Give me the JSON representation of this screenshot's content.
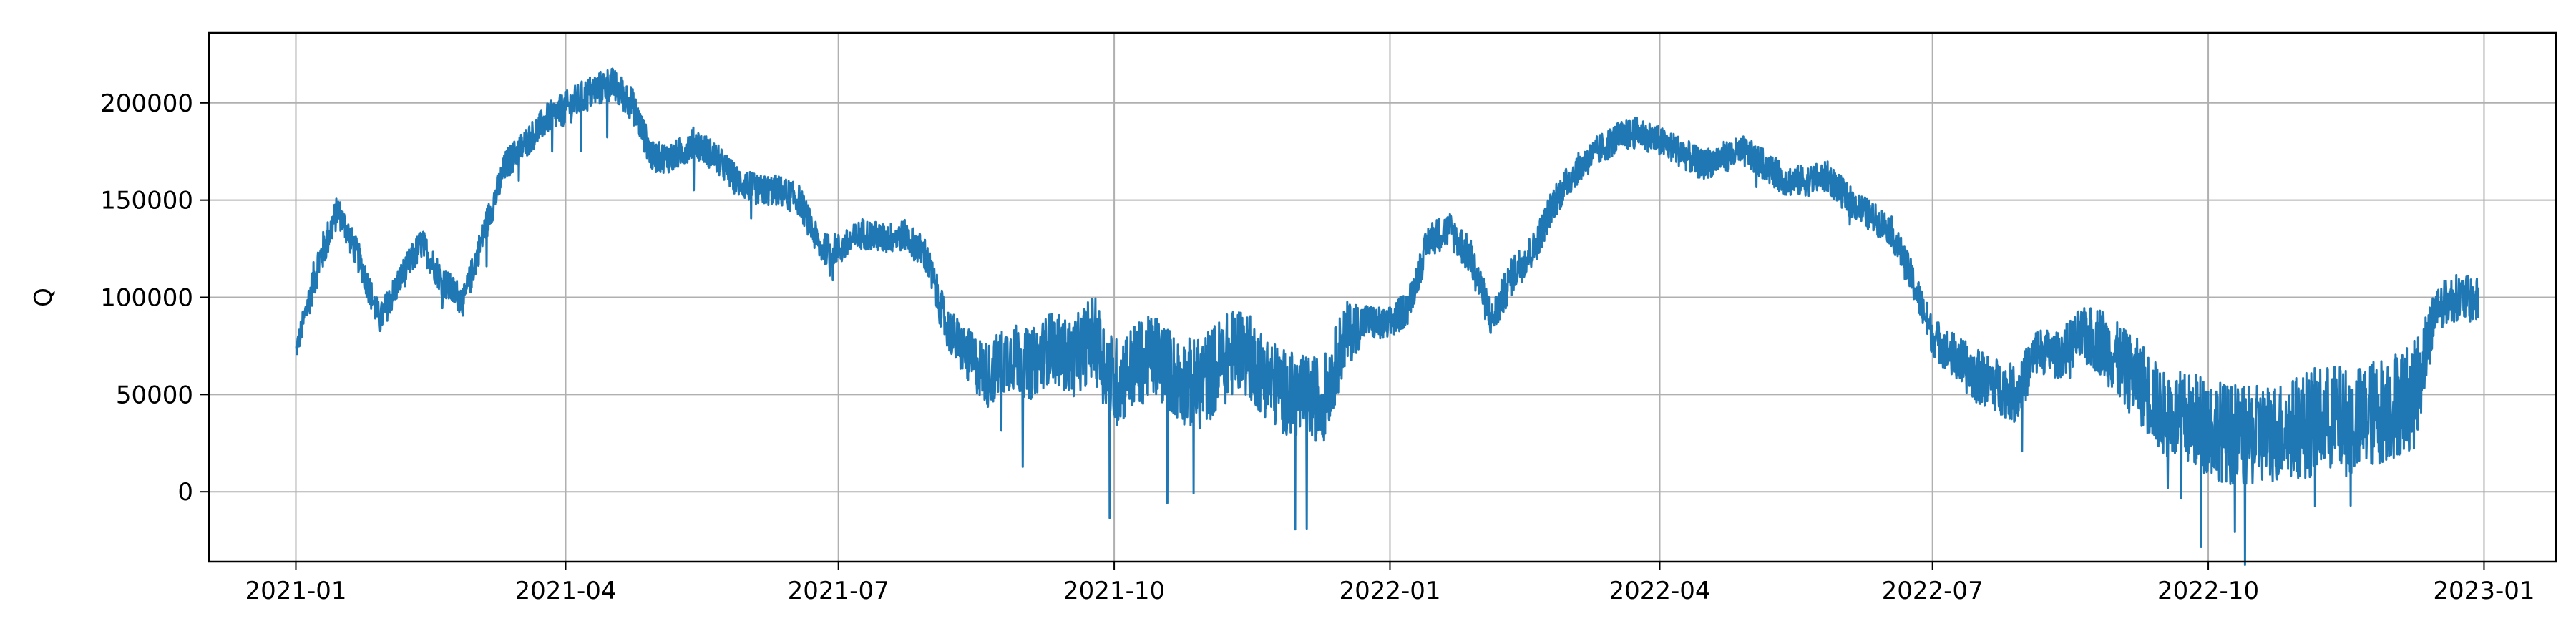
{
  "chart_data": {
    "type": "line",
    "title": "",
    "xlabel": "",
    "ylabel": "Q",
    "grid": true,
    "legend": "none",
    "xlim": [
      "2020-12-03",
      "2023-01-25"
    ],
    "ylim": [
      -36000,
      236000
    ],
    "x_ticks": [
      "2021-01",
      "2021-04",
      "2021-07",
      "2021-10",
      "2022-01",
      "2022-04",
      "2022-07",
      "2022-10",
      "2023-01"
    ],
    "y_ticks": [
      0,
      50000,
      100000,
      150000,
      200000
    ],
    "y_tick_labels": [
      "0",
      "50000",
      "100000",
      "150000",
      "200000"
    ],
    "series": [
      {
        "color": "#1f77b4",
        "x": [
          "2021-01-01",
          "2021-01-08",
          "2021-01-15",
          "2021-01-22",
          "2021-01-29",
          "2021-02-05",
          "2021-02-12",
          "2021-02-19",
          "2021-02-26",
          "2021-03-05",
          "2021-03-12",
          "2021-03-19",
          "2021-03-26",
          "2021-04-02",
          "2021-04-09",
          "2021-04-16",
          "2021-04-23",
          "2021-04-30",
          "2021-05-07",
          "2021-05-14",
          "2021-05-21",
          "2021-05-28",
          "2021-06-04",
          "2021-06-11",
          "2021-06-18",
          "2021-06-25",
          "2021-07-02",
          "2021-07-09",
          "2021-07-16",
          "2021-07-23",
          "2021-07-30",
          "2021-08-06",
          "2021-08-13",
          "2021-08-20",
          "2021-08-27",
          "2021-09-03",
          "2021-09-10",
          "2021-09-17",
          "2021-09-24",
          "2021-10-01",
          "2021-10-08",
          "2021-10-15",
          "2021-10-22",
          "2021-10-29",
          "2021-11-05",
          "2021-11-12",
          "2021-11-19",
          "2021-11-26",
          "2021-12-03",
          "2021-12-10",
          "2021-12-17",
          "2021-12-24",
          "2021-12-31",
          "2022-01-07",
          "2022-01-14",
          "2022-01-21",
          "2022-01-28",
          "2022-02-04",
          "2022-02-11",
          "2022-02-18",
          "2022-02-25",
          "2022-03-04",
          "2022-03-11",
          "2022-03-18",
          "2022-03-25",
          "2022-04-01",
          "2022-04-08",
          "2022-04-15",
          "2022-04-22",
          "2022-04-29",
          "2022-05-06",
          "2022-05-13",
          "2022-05-20",
          "2022-05-27",
          "2022-06-03",
          "2022-06-10",
          "2022-06-17",
          "2022-06-24",
          "2022-07-01",
          "2022-07-08",
          "2022-07-15",
          "2022-07-22",
          "2022-07-29",
          "2022-08-05",
          "2022-08-12",
          "2022-08-19",
          "2022-08-26",
          "2022-09-02",
          "2022-09-09",
          "2022-09-16",
          "2022-09-23",
          "2022-09-30",
          "2022-10-07",
          "2022-10-14",
          "2022-10-21",
          "2022-10-28",
          "2022-11-04",
          "2022-11-11",
          "2022-11-18",
          "2022-11-25",
          "2022-12-02",
          "2022-12-09",
          "2022-12-16",
          "2022-12-23",
          "2022-12-30"
        ],
        "y": [
          72000,
          115000,
          145000,
          120000,
          88000,
          110000,
          128000,
          108000,
          98000,
          135000,
          168000,
          180000,
          192000,
          198000,
          205000,
          210000,
          200000,
          172000,
          172000,
          180000,
          172000,
          160000,
          155000,
          155000,
          150000,
          125000,
          125000,
          133000,
          130000,
          132000,
          122000,
          85000,
          70000,
          60000,
          70000,
          65000,
          75000,
          68000,
          80000,
          55000,
          65000,
          70000,
          58000,
          55000,
          65000,
          75000,
          62000,
          52000,
          48000,
          48000,
          80000,
          88000,
          85000,
          95000,
          130000,
          135000,
          120000,
          88000,
          112000,
          125000,
          150000,
          165000,
          175000,
          182000,
          185000,
          180000,
          175000,
          168000,
          172000,
          175000,
          168000,
          160000,
          160000,
          162000,
          150000,
          142000,
          135000,
          110000,
          80000,
          70000,
          60000,
          55000,
          50000,
          73000,
          70000,
          80000,
          78000,
          65000,
          55000,
          40000,
          38000,
          35000,
          30000,
          28000,
          30000,
          32000,
          35000,
          38000,
          35000,
          40000,
          45000,
          50000,
          95000,
          100000,
          98000
        ],
        "spread": [
          5000,
          11000,
          8000,
          8000,
          8000,
          8000,
          8000,
          8000,
          8000,
          8000,
          8000,
          8000,
          8000,
          9000,
          9000,
          9000,
          9000,
          8000,
          8000,
          8000,
          8000,
          8000,
          8000,
          8000,
          8000,
          8000,
          8000,
          8000,
          8000,
          8000,
          9000,
          11000,
          14000,
          17000,
          18000,
          18000,
          18000,
          20000,
          22000,
          24000,
          22000,
          22000,
          22000,
          24000,
          24000,
          22000,
          22000,
          22000,
          22000,
          22000,
          18000,
          9000,
          9000,
          9000,
          9000,
          9000,
          10000,
          10000,
          10000,
          9000,
          9000,
          8000,
          8000,
          8000,
          8000,
          8000,
          8000,
          8000,
          8000,
          8000,
          8000,
          8000,
          8000,
          8000,
          8000,
          8000,
          8000,
          9000,
          10000,
          12000,
          14000,
          14000,
          15000,
          12000,
          12000,
          14000,
          18000,
          20000,
          22000,
          22000,
          24000,
          26000,
          26000,
          26000,
          26000,
          26000,
          28000,
          28000,
          28000,
          28000,
          28000,
          28000,
          12000,
          12000,
          12000
        ]
      }
    ]
  }
}
